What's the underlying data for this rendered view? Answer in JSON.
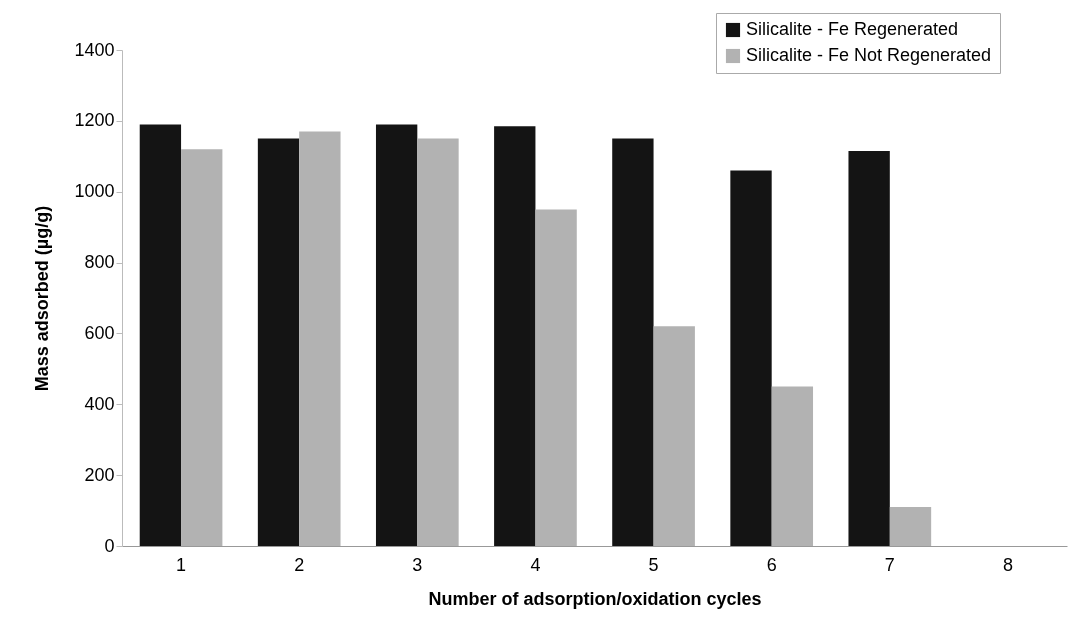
{
  "chart_data": {
    "type": "bar",
    "xlabel": "Number of adsorption/oxidation cycles",
    "ylabel": "Mass adsorbed (µg/g)",
    "categories": [
      "1",
      "2",
      "3",
      "4",
      "5",
      "6",
      "7",
      "8"
    ],
    "series": [
      {
        "name": "Silicalite - Fe Regenerated",
        "color": "#141414",
        "values": [
          1190,
          1150,
          1190,
          1185,
          1150,
          1060,
          1115,
          null
        ]
      },
      {
        "name": "Silicalite - Fe Not Regenerated",
        "color": "#b2b2b2",
        "values": [
          1120,
          1170,
          1150,
          950,
          620,
          450,
          110,
          null
        ]
      }
    ],
    "ylim": [
      0,
      1400
    ],
    "yticks": [
      0,
      200,
      400,
      600,
      800,
      1000,
      1200,
      1400
    ],
    "grid": false,
    "legend": "top right"
  }
}
